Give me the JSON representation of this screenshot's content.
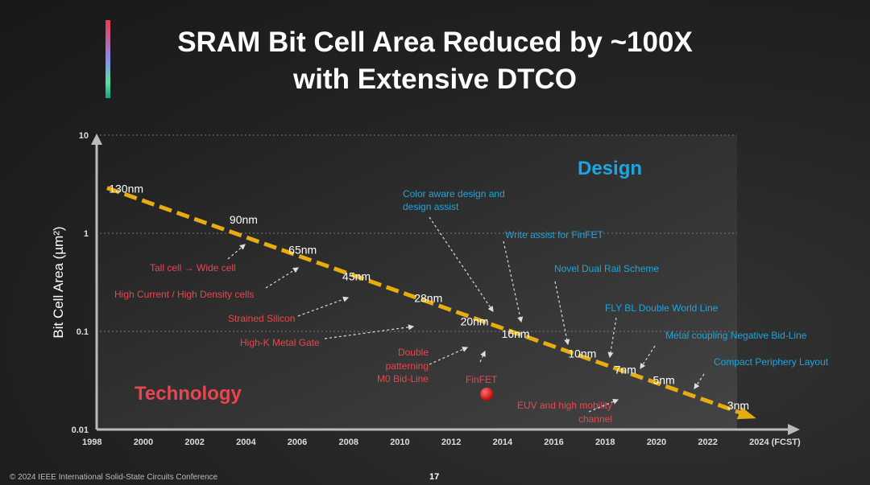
{
  "slide": {
    "title_line1": "SRAM Bit Cell Area Reduced by ~100X",
    "title_line2": "with Extensive DTCO",
    "footer": "© 2024 IEEE International Solid-State Circuits Conference",
    "page_number": "17"
  },
  "colors": {
    "trend": "#e6ac12",
    "technology": "#e8464e",
    "design": "#1aa6e0",
    "label": "#ffffff"
  },
  "chart_data": {
    "type": "line",
    "ylabel": "Bit Cell Area (µm²)",
    "xlabel": "",
    "y_scale": "log",
    "ylim": [
      0.01,
      10
    ],
    "xlim": [
      1998,
      2024
    ],
    "y_ticks": [
      "10",
      "1",
      "0.1",
      "0.01"
    ],
    "x_ticks": [
      "1998",
      "2000",
      "2002",
      "2004",
      "2006",
      "2008",
      "2010",
      "2012",
      "2014",
      "2016",
      "2018",
      "2020",
      "2022",
      "2024 (FCST)"
    ],
    "grid": "dotted horizontal at 10, 1, 0.1",
    "trend": {
      "style": "dashed arrow",
      "start": [
        1998.5,
        2.9
      ],
      "end": [
        2023.8,
        0.013
      ]
    },
    "region_labels": {
      "technology": "Technology",
      "design": "Design"
    },
    "nodes": [
      {
        "label": "130nm",
        "x": 1999.2,
        "y": 2.6
      },
      {
        "label": "90nm",
        "x": 2003.9,
        "y": 1.25
      },
      {
        "label": "65nm",
        "x": 2006.2,
        "y": 0.62
      },
      {
        "label": "45nm",
        "x": 2008.3,
        "y": 0.33
      },
      {
        "label": "28nm",
        "x": 2011.1,
        "y": 0.2
      },
      {
        "label": "20nm",
        "x": 2012.9,
        "y": 0.115
      },
      {
        "label": "16nm",
        "x": 2014.5,
        "y": 0.086
      },
      {
        "label": "10nm",
        "x": 2017.1,
        "y": 0.054
      },
      {
        "label": "7nm",
        "x": 2018.9,
        "y": 0.037
      },
      {
        "label": "5nm",
        "x": 2020.4,
        "y": 0.029
      },
      {
        "label": "3nm",
        "x": 2023.3,
        "y": 0.016
      }
    ],
    "technology_annotations": [
      "Tall cell → Wide cell",
      "High Current / High Density cells",
      "Strained Silicon",
      "High-K Metal Gate",
      "Double",
      "patterning",
      "M0 Bid-Line",
      "FinFET",
      "EUV and high mobility",
      "channel"
    ],
    "design_annotations": [
      "Color aware design and",
      "design assist",
      "Write assist for FinFET",
      "Novel Dual Rail Scheme",
      "FLY BL Double World Line",
      "Metal coupling Negative Bid-Line",
      "Compact Periphery Layout"
    ],
    "finfet_marker": {
      "x": 2013.3,
      "y": 0.023
    }
  }
}
